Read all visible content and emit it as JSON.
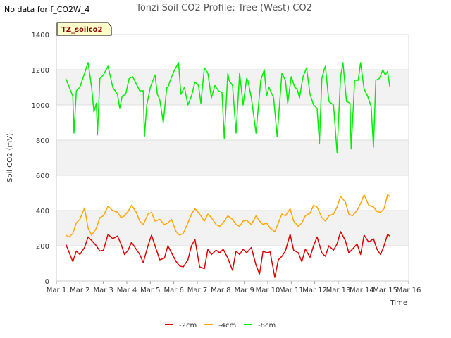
{
  "no_data_note": "No data for f_CO2W_4",
  "badge_label": "TZ_soilco2",
  "chart_data": {
    "type": "line",
    "title": "Tonzi Soil CO2 Profile: Tree (West) CO2",
    "xlabel": "Time",
    "ylabel": "Soil CO2 (mV)",
    "xlim": [
      1,
      16
    ],
    "ylim": [
      0,
      1400
    ],
    "x_ticks": [
      1,
      2,
      3,
      4,
      5,
      6,
      7,
      8,
      9,
      10,
      11,
      12,
      13,
      14,
      15,
      16
    ],
    "x_tick_labels": [
      "Mar 1",
      "Mar 2",
      "Mar 3",
      "Mar 4",
      "Mar 5",
      "Mar 6",
      "Mar 7",
      "Mar 8",
      "Mar 9",
      "Mar 10",
      "Mar 11",
      "Mar 12",
      "Mar 13",
      "Mar 14",
      "Mar 15",
      "Mar 16"
    ],
    "y_ticks": [
      0,
      200,
      400,
      600,
      800,
      1000,
      1200,
      1400
    ],
    "y_tick_labels": [
      "0",
      "200",
      "400",
      "600",
      "800",
      "1000",
      "1200",
      "1400"
    ],
    "bands": [
      [
        200,
        400
      ],
      [
        600,
        800
      ],
      [
        1000,
        1200
      ]
    ],
    "legend_position": "bottom-center",
    "series": [
      {
        "name": "-2cm",
        "color": "#dd0000",
        "x": [
          1.4,
          1.55,
          1.7,
          1.85,
          2.0,
          2.2,
          2.35,
          2.5,
          2.7,
          2.85,
          3.0,
          3.2,
          3.4,
          3.6,
          3.75,
          3.9,
          4.05,
          4.2,
          4.4,
          4.55,
          4.7,
          4.9,
          5.05,
          5.2,
          5.4,
          5.6,
          5.75,
          5.9,
          6.1,
          6.25,
          6.4,
          6.6,
          6.75,
          6.9,
          7.1,
          7.3,
          7.45,
          7.6,
          7.8,
          7.95,
          8.1,
          8.3,
          8.5,
          8.65,
          8.8,
          8.95,
          9.1,
          9.3,
          9.5,
          9.65,
          9.8,
          9.95,
          10.1,
          10.3,
          10.45,
          10.6,
          10.75,
          10.95,
          11.1,
          11.3,
          11.45,
          11.6,
          11.8,
          11.95,
          12.1,
          12.3,
          12.45,
          12.6,
          12.8,
          12.95,
          13.1,
          13.3,
          13.45,
          13.6,
          13.8,
          13.95,
          14.1,
          14.3,
          14.5,
          14.65,
          14.8,
          14.95,
          15.1,
          15.2
        ],
        "y": [
          210,
          160,
          110,
          170,
          150,
          190,
          250,
          230,
          200,
          170,
          175,
          265,
          240,
          255,
          210,
          150,
          175,
          220,
          180,
          150,
          105,
          200,
          260,
          200,
          120,
          130,
          200,
          160,
          110,
          85,
          80,
          120,
          200,
          235,
          80,
          70,
          180,
          150,
          175,
          160,
          180,
          130,
          60,
          170,
          150,
          180,
          160,
          190,
          90,
          40,
          170,
          160,
          165,
          20,
          120,
          140,
          170,
          265,
          175,
          160,
          110,
          180,
          135,
          200,
          250,
          160,
          140,
          200,
          175,
          210,
          280,
          230,
          160,
          180,
          210,
          150,
          260,
          220,
          240,
          180,
          150,
          200,
          265,
          255
        ]
      },
      {
        "name": "-4cm",
        "color": "#ffa500",
        "x": [
          1.4,
          1.55,
          1.7,
          1.85,
          2.0,
          2.2,
          2.35,
          2.5,
          2.7,
          2.85,
          3.0,
          3.2,
          3.4,
          3.6,
          3.75,
          3.9,
          4.05,
          4.2,
          4.4,
          4.55,
          4.7,
          4.9,
          5.05,
          5.2,
          5.4,
          5.6,
          5.75,
          5.9,
          6.1,
          6.25,
          6.4,
          6.6,
          6.75,
          6.9,
          7.1,
          7.3,
          7.45,
          7.6,
          7.8,
          7.95,
          8.1,
          8.3,
          8.5,
          8.65,
          8.8,
          8.95,
          9.1,
          9.3,
          9.5,
          9.65,
          9.8,
          9.95,
          10.1,
          10.3,
          10.45,
          10.6,
          10.75,
          10.95,
          11.1,
          11.3,
          11.45,
          11.6,
          11.8,
          11.95,
          12.1,
          12.3,
          12.45,
          12.6,
          12.8,
          12.95,
          13.1,
          13.3,
          13.45,
          13.6,
          13.8,
          13.95,
          14.1,
          14.3,
          14.5,
          14.65,
          14.8,
          14.95,
          15.1,
          15.2
        ],
        "y": [
          260,
          250,
          270,
          330,
          350,
          415,
          300,
          260,
          300,
          360,
          370,
          425,
          400,
          390,
          360,
          370,
          395,
          430,
          390,
          340,
          320,
          380,
          390,
          340,
          350,
          320,
          330,
          350,
          280,
          260,
          270,
          330,
          380,
          410,
          380,
          340,
          380,
          360,
          320,
          310,
          330,
          370,
          350,
          320,
          310,
          340,
          345,
          320,
          370,
          340,
          320,
          330,
          300,
          280,
          330,
          380,
          370,
          410,
          340,
          310,
          330,
          370,
          385,
          430,
          420,
          360,
          340,
          370,
          380,
          420,
          480,
          450,
          380,
          370,
          400,
          440,
          490,
          430,
          420,
          395,
          390,
          410,
          490,
          480
        ]
      },
      {
        "name": "-8cm",
        "color": "#00ee00",
        "x": [
          1.4,
          1.55,
          1.7,
          1.75,
          1.85,
          2.0,
          2.2,
          2.35,
          2.5,
          2.6,
          2.7,
          2.75,
          2.85,
          3.0,
          3.2,
          3.4,
          3.6,
          3.7,
          3.8,
          3.95,
          4.1,
          4.25,
          4.4,
          4.55,
          4.7,
          4.75,
          4.85,
          5.0,
          5.2,
          5.3,
          5.4,
          5.55,
          5.7,
          5.75,
          5.85,
          6.0,
          6.2,
          6.3,
          6.45,
          6.6,
          6.75,
          6.9,
          7.05,
          7.15,
          7.3,
          7.35,
          7.45,
          7.6,
          7.75,
          7.9,
          8.05,
          8.15,
          8.3,
          8.35,
          8.5,
          8.65,
          8.8,
          8.95,
          9.1,
          9.15,
          9.3,
          9.5,
          9.7,
          9.85,
          9.95,
          10.05,
          10.25,
          10.4,
          10.6,
          10.75,
          10.85,
          11.0,
          11.15,
          11.25,
          11.35,
          11.5,
          11.65,
          11.8,
          11.95,
          12.1,
          12.2,
          12.3,
          12.4,
          12.45,
          12.6,
          12.8,
          12.95,
          13.1,
          13.2,
          13.35,
          13.5,
          13.55,
          13.7,
          13.85,
          13.95,
          14.1,
          14.25,
          14.4,
          14.5,
          14.6,
          14.75,
          14.9,
          15.0,
          15.1,
          15.2
        ],
        "y": [
          1150,
          1100,
          1050,
          840,
          1080,
          1100,
          1180,
          1240,
          1100,
          960,
          1010,
          830,
          1150,
          1170,
          1220,
          1100,
          1060,
          980,
          1050,
          1060,
          1150,
          1160,
          1120,
          1080,
          1080,
          820,
          1000,
          1100,
          1170,
          1060,
          1030,
          900,
          1100,
          1100,
          1140,
          1190,
          1240,
          1060,
          1100,
          1000,
          1050,
          1130,
          1110,
          1010,
          1210,
          1200,
          1180,
          1040,
          1110,
          1080,
          1070,
          810,
          1180,
          1140,
          1110,
          840,
          1180,
          1000,
          1150,
          1140,
          1040,
          840,
          1140,
          1200,
          1050,
          1100,
          1040,
          820,
          1180,
          1140,
          1010,
          1160,
          1100,
          1090,
          1040,
          1160,
          1210,
          1060,
          1000,
          980,
          780,
          1150,
          1200,
          1220,
          1020,
          1000,
          730,
          1160,
          1240,
          1020,
          1010,
          750,
          1140,
          1140,
          1240,
          1090,
          1050,
          990,
          760,
          1140,
          1150,
          1200,
          1170,
          1190,
          1100
        ]
      }
    ]
  }
}
